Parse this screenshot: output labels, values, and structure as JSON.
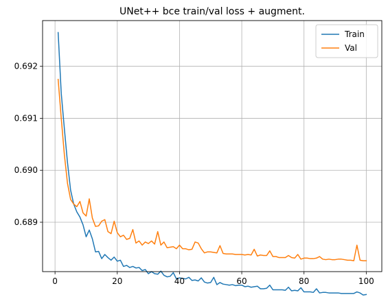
{
  "chart_data": {
    "type": "line",
    "title": "UNet++ bce train/val loss + augment.",
    "xlabel": "",
    "ylabel": "",
    "xlim": [
      -4,
      105
    ],
    "ylim": [
      0.68805,
      0.69288
    ],
    "xticks": [
      0,
      20,
      40,
      60,
      80,
      100
    ],
    "yticks": [
      0.689,
      0.69,
      0.691,
      0.692
    ],
    "ytick_labels": [
      "0.689",
      "0.690",
      "0.691",
      "0.692"
    ],
    "grid": true,
    "legend_position": "top-right",
    "series": [
      {
        "name": "Train",
        "color": "#1f77b4",
        "x": [
          1,
          2,
          3,
          4,
          5,
          6,
          7,
          8,
          9,
          10,
          11,
          12,
          13,
          14,
          15,
          16,
          17,
          18,
          19,
          20,
          21,
          22,
          23,
          24,
          25,
          26,
          27,
          28,
          29,
          30,
          31,
          32,
          33,
          34,
          35,
          36,
          37,
          38,
          39,
          40,
          41,
          42,
          43,
          44,
          45,
          46,
          47,
          48,
          49,
          50,
          51,
          52,
          53,
          54,
          55,
          56,
          57,
          58,
          59,
          60,
          61,
          62,
          63,
          64,
          65,
          66,
          67,
          68,
          69,
          70,
          71,
          72,
          73,
          74,
          75,
          76,
          77,
          78,
          79,
          80,
          81,
          82,
          83,
          84,
          85,
          86,
          87,
          88,
          89,
          90,
          91,
          92,
          93,
          94,
          95,
          96,
          97,
          98,
          99,
          100
        ],
        "values": [
          0.69265,
          0.69148,
          0.6908,
          0.69015,
          0.68962,
          0.68935,
          0.6892,
          0.6891,
          0.68895,
          0.68872,
          0.68885,
          0.68868,
          0.68843,
          0.68844,
          0.6883,
          0.68838,
          0.68832,
          0.68827,
          0.68833,
          0.68825,
          0.68827,
          0.68815,
          0.68817,
          0.68813,
          0.68815,
          0.68812,
          0.68813,
          0.68807,
          0.68809,
          0.68801,
          0.68805,
          0.68801,
          0.688,
          0.68806,
          0.68798,
          0.68795,
          0.68796,
          0.68803,
          0.68791,
          0.68793,
          0.68792,
          0.68791,
          0.68794,
          0.68788,
          0.68789,
          0.68787,
          0.68793,
          0.68785,
          0.68783,
          0.68784,
          0.68794,
          0.6878,
          0.68784,
          0.68781,
          0.6878,
          0.68779,
          0.6878,
          0.68778,
          0.68779,
          0.68779,
          0.68776,
          0.68777,
          0.68775,
          0.68776,
          0.68777,
          0.68772,
          0.68772,
          0.68773,
          0.68779,
          0.6877,
          0.6877,
          0.6877,
          0.6877,
          0.68769,
          0.68775,
          0.68768,
          0.68769,
          0.68768,
          0.68774,
          0.68766,
          0.68766,
          0.68766,
          0.68765,
          0.68772,
          0.68764,
          0.68765,
          0.68765,
          0.68764,
          0.68764,
          0.68764,
          0.68764,
          0.68763,
          0.68763,
          0.68763,
          0.68763,
          0.68763,
          0.68766,
          0.68764,
          0.6876,
          0.68761
        ]
      },
      {
        "name": "Val",
        "color": "#ff7f0e",
        "x": [
          1,
          2,
          3,
          4,
          5,
          6,
          7,
          8,
          9,
          10,
          11,
          12,
          13,
          14,
          15,
          16,
          17,
          18,
          19,
          20,
          21,
          22,
          23,
          24,
          25,
          26,
          27,
          28,
          29,
          30,
          31,
          32,
          33,
          34,
          35,
          36,
          37,
          38,
          39,
          40,
          41,
          42,
          43,
          44,
          45,
          46,
          47,
          48,
          49,
          50,
          51,
          52,
          53,
          54,
          55,
          56,
          57,
          58,
          59,
          60,
          61,
          62,
          63,
          64,
          65,
          66,
          67,
          68,
          69,
          70,
          71,
          72,
          73,
          74,
          75,
          76,
          77,
          78,
          79,
          80,
          81,
          82,
          83,
          84,
          85,
          86,
          87,
          88,
          89,
          90,
          91,
          92,
          93,
          94,
          95,
          96,
          97,
          98,
          99,
          100
        ],
        "values": [
          0.69175,
          0.691,
          0.6903,
          0.68975,
          0.68944,
          0.68935,
          0.6893,
          0.6894,
          0.68918,
          0.68912,
          0.68945,
          0.68908,
          0.68892,
          0.68893,
          0.68902,
          0.68905,
          0.68882,
          0.68878,
          0.68902,
          0.6888,
          0.68872,
          0.68875,
          0.68867,
          0.68869,
          0.68886,
          0.6886,
          0.68864,
          0.68856,
          0.68862,
          0.68859,
          0.68864,
          0.68858,
          0.68882,
          0.68856,
          0.68862,
          0.68851,
          0.68852,
          0.68853,
          0.68849,
          0.68856,
          0.68849,
          0.68849,
          0.68847,
          0.68848,
          0.68862,
          0.6886,
          0.68849,
          0.68841,
          0.68843,
          0.68843,
          0.68842,
          0.68841,
          0.68855,
          0.6884,
          0.68839,
          0.68839,
          0.68839,
          0.68838,
          0.68838,
          0.68838,
          0.68837,
          0.68838,
          0.68837,
          0.68848,
          0.68835,
          0.68837,
          0.68836,
          0.68836,
          0.68845,
          0.68834,
          0.68834,
          0.68832,
          0.68832,
          0.68832,
          0.68836,
          0.68832,
          0.68831,
          0.68838,
          0.68829,
          0.68831,
          0.68831,
          0.6883,
          0.6883,
          0.68831,
          0.68834,
          0.68829,
          0.68828,
          0.68829,
          0.68828,
          0.68828,
          0.68829,
          0.68829,
          0.68828,
          0.68827,
          0.68827,
          0.68826,
          0.68856,
          0.68827,
          0.68826,
          0.68826
        ]
      }
    ]
  }
}
